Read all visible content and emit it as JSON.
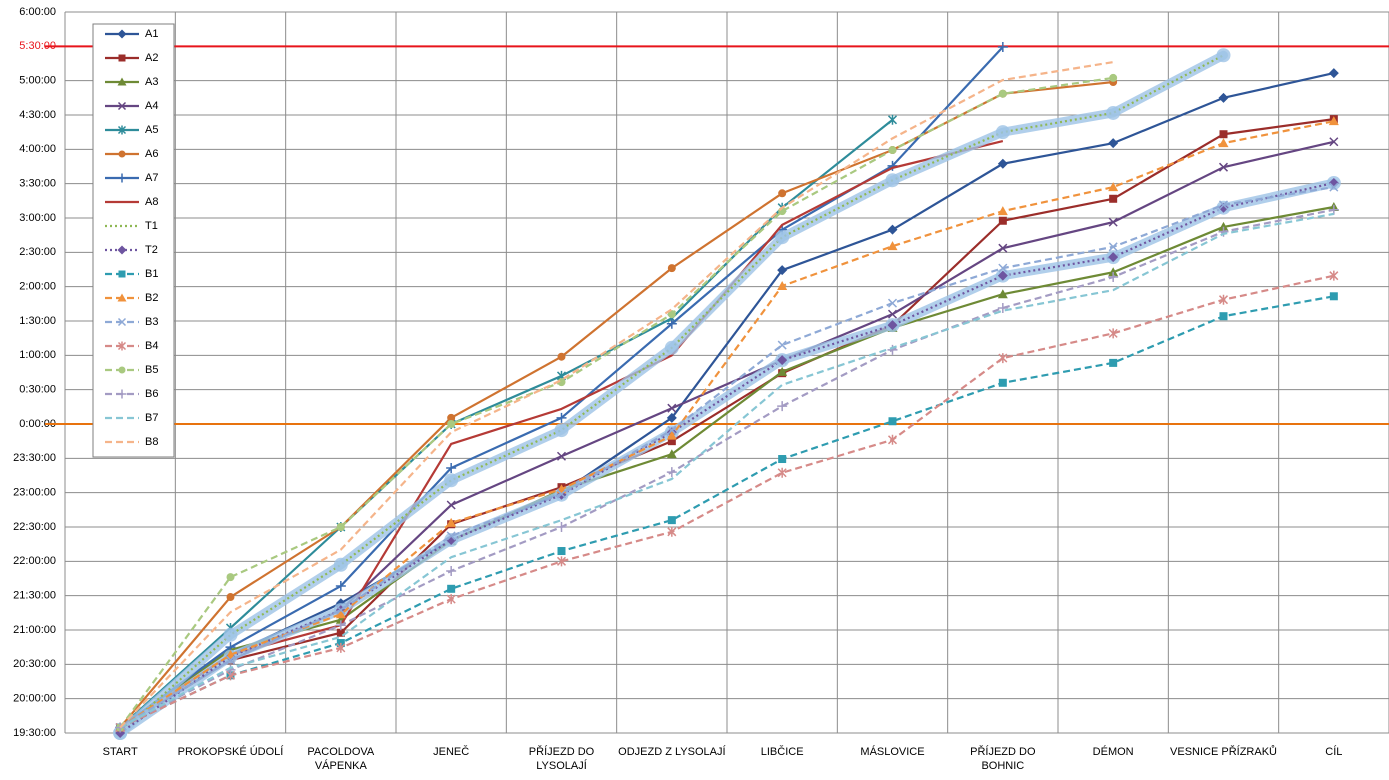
{
  "chart_data": {
    "type": "line",
    "categories": [
      "START",
      "PROKOPSKÉ ÚDOLÍ",
      "PACOLDOVA VÁPENKA",
      "JENEČ",
      "PŘÍJEZD DO LYSOLAJÍ",
      "ODJEZD Z LYSOLAJÍ",
      "LIBČICE",
      "MÁSLOVICE",
      "PŘÍJEZD DO BOHNIC",
      "DÉMON",
      "VESNICE PŘÍZRAKŮ",
      "CÍL"
    ],
    "ylim": [
      19.5,
      30
    ],
    "yticks": [
      {
        "value": 19.5,
        "label": "19:30:00"
      },
      {
        "value": 20,
        "label": "20:00:00"
      },
      {
        "value": 20.5,
        "label": "20:30:00"
      },
      {
        "value": 21,
        "label": "21:00:00"
      },
      {
        "value": 21.5,
        "label": "21:30:00"
      },
      {
        "value": 22,
        "label": "22:00:00"
      },
      {
        "value": 22.5,
        "label": "22:30:00"
      },
      {
        "value": 23,
        "label": "23:00:00"
      },
      {
        "value": 23.5,
        "label": "23:30:00"
      },
      {
        "value": 24,
        "label": "0:00:00"
      },
      {
        "value": 24.5,
        "label": "0:30:00"
      },
      {
        "value": 25,
        "label": "1:00:00"
      },
      {
        "value": 25.5,
        "label": "1:30:00"
      },
      {
        "value": 26,
        "label": "2:00:00"
      },
      {
        "value": 26.5,
        "label": "2:30:00"
      },
      {
        "value": 27,
        "label": "3:00:00"
      },
      {
        "value": 27.5,
        "label": "3:30:00"
      },
      {
        "value": 28,
        "label": "4:00:00"
      },
      {
        "value": 28.5,
        "label": "4:30:00"
      },
      {
        "value": 29,
        "label": "5:00:00"
      },
      {
        "value": 29.5,
        "label": "5:30:00"
      },
      {
        "value": 30,
        "label": "6:00:00"
      }
    ],
    "grid": true,
    "reference_lines": [
      {
        "value": 29.5,
        "color": "#e8141b"
      },
      {
        "value": 24,
        "color": "#e8730e"
      }
    ],
    "legend": "top-left",
    "series": [
      {
        "name": "A1",
        "color": "#2e5597",
        "marker": "diamond",
        "values": [
          19.58,
          20.64,
          21.39,
          22.31,
          23.0,
          24.09,
          26.24,
          26.83,
          27.79,
          28.09,
          28.75,
          29.11
        ]
      },
      {
        "name": "A2",
        "color": "#9b2d2a",
        "marker": "square",
        "values": [
          19.58,
          20.56,
          20.96,
          22.54,
          23.08,
          23.75,
          24.74,
          25.44,
          26.96,
          27.28,
          28.22,
          28.44
        ]
      },
      {
        "name": "A3",
        "color": "#6e8a35",
        "marker": "triangle",
        "values": [
          19.58,
          20.71,
          21.15,
          22.3,
          23.04,
          23.56,
          24.76,
          25.4,
          25.89,
          26.21,
          26.87,
          27.16
        ]
      },
      {
        "name": "A4",
        "color": "#654682",
        "marker": "x",
        "values": [
          19.58,
          20.56,
          21.29,
          22.82,
          23.53,
          24.23,
          24.93,
          25.6,
          26.56,
          26.94,
          27.74,
          28.11
        ]
      },
      {
        "name": "A5",
        "color": "#2e8c9a",
        "marker": "asterisk",
        "values": [
          19.58,
          21.03,
          22.5,
          24.0,
          24.7,
          25.54,
          27.15,
          28.43,
          null,
          null,
          null,
          null
        ]
      },
      {
        "name": "A6",
        "color": "#cf7330",
        "marker": "circle",
        "values": [
          19.58,
          21.48,
          22.5,
          24.09,
          24.98,
          26.27,
          27.36,
          27.99,
          28.81,
          28.98,
          null,
          null
        ]
      },
      {
        "name": "A7",
        "color": "#3a6bb0",
        "marker": "plus",
        "values": [
          19.58,
          20.75,
          21.64,
          23.36,
          24.09,
          25.46,
          26.83,
          27.76,
          29.49,
          null,
          null,
          null
        ]
      },
      {
        "name": "A8",
        "color": "#b53a36",
        "marker": "none",
        "values": [
          19.58,
          20.64,
          21.07,
          23.71,
          24.22,
          25.0,
          26.9,
          27.73,
          28.12,
          null,
          null,
          null
        ]
      },
      {
        "name": "T1",
        "color": "#8fb854",
        "marker": "none",
        "dash": "dot",
        "glow": "#9dc3e6",
        "values": [
          19.5,
          20.93,
          21.95,
          23.18,
          23.91,
          25.11,
          26.72,
          27.55,
          28.25,
          28.53,
          29.37,
          null
        ]
      },
      {
        "name": "T2",
        "color": "#6e55a0",
        "marker": "diamond",
        "dash": "dot",
        "glow": "#9dc3e6",
        "values": [
          19.5,
          20.61,
          21.29,
          22.31,
          22.97,
          23.88,
          24.93,
          25.44,
          26.16,
          26.43,
          27.15,
          27.51
        ]
      },
      {
        "name": "B1",
        "color": "#2e9cb0",
        "marker": "square",
        "dash": "dash",
        "values": [
          19.58,
          20.34,
          20.81,
          21.6,
          22.15,
          22.6,
          23.49,
          24.04,
          24.6,
          24.89,
          25.57,
          25.86
        ]
      },
      {
        "name": "B2",
        "color": "#f0923c",
        "marker": "triangle",
        "dash": "dash",
        "values": [
          19.58,
          20.64,
          21.23,
          22.56,
          23.05,
          23.83,
          26.01,
          26.59,
          27.1,
          27.45,
          28.09,
          28.41
        ]
      },
      {
        "name": "B3",
        "color": "#8ea9d6",
        "marker": "x",
        "dash": "dash",
        "values": [
          19.58,
          20.56,
          21.29,
          22.37,
          22.98,
          23.91,
          25.15,
          25.76,
          26.27,
          26.58,
          27.19,
          27.45
        ]
      },
      {
        "name": "B4",
        "color": "#d68a88",
        "marker": "asterisk",
        "dash": "dash",
        "values": [
          19.58,
          20.34,
          20.74,
          21.45,
          22.0,
          22.43,
          23.29,
          23.77,
          24.96,
          25.32,
          25.81,
          26.16
        ]
      },
      {
        "name": "B5",
        "color": "#a9c980",
        "marker": "circle",
        "dash": "dash",
        "values": [
          19.58,
          21.77,
          22.5,
          24.0,
          24.61,
          25.6,
          27.1,
          27.99,
          28.81,
          29.04,
          null,
          null
        ]
      },
      {
        "name": "B6",
        "color": "#a39bc3",
        "marker": "plus",
        "dash": "dash",
        "values": [
          19.58,
          20.42,
          21.07,
          21.86,
          22.5,
          23.3,
          24.26,
          25.08,
          25.69,
          26.14,
          26.8,
          27.12
        ]
      },
      {
        "name": "B7",
        "color": "#87c6d4",
        "marker": "none",
        "dash": "dash",
        "values": [
          19.58,
          20.45,
          20.9,
          22.06,
          22.6,
          23.2,
          24.57,
          25.11,
          25.65,
          25.95,
          26.77,
          27.06
        ]
      },
      {
        "name": "B8",
        "color": "#f5b48a",
        "marker": "none",
        "dash": "dash",
        "values": [
          19.58,
          21.26,
          22.17,
          23.88,
          24.64,
          25.67,
          27.15,
          28.16,
          29.01,
          29.27,
          null,
          null
        ]
      }
    ]
  }
}
